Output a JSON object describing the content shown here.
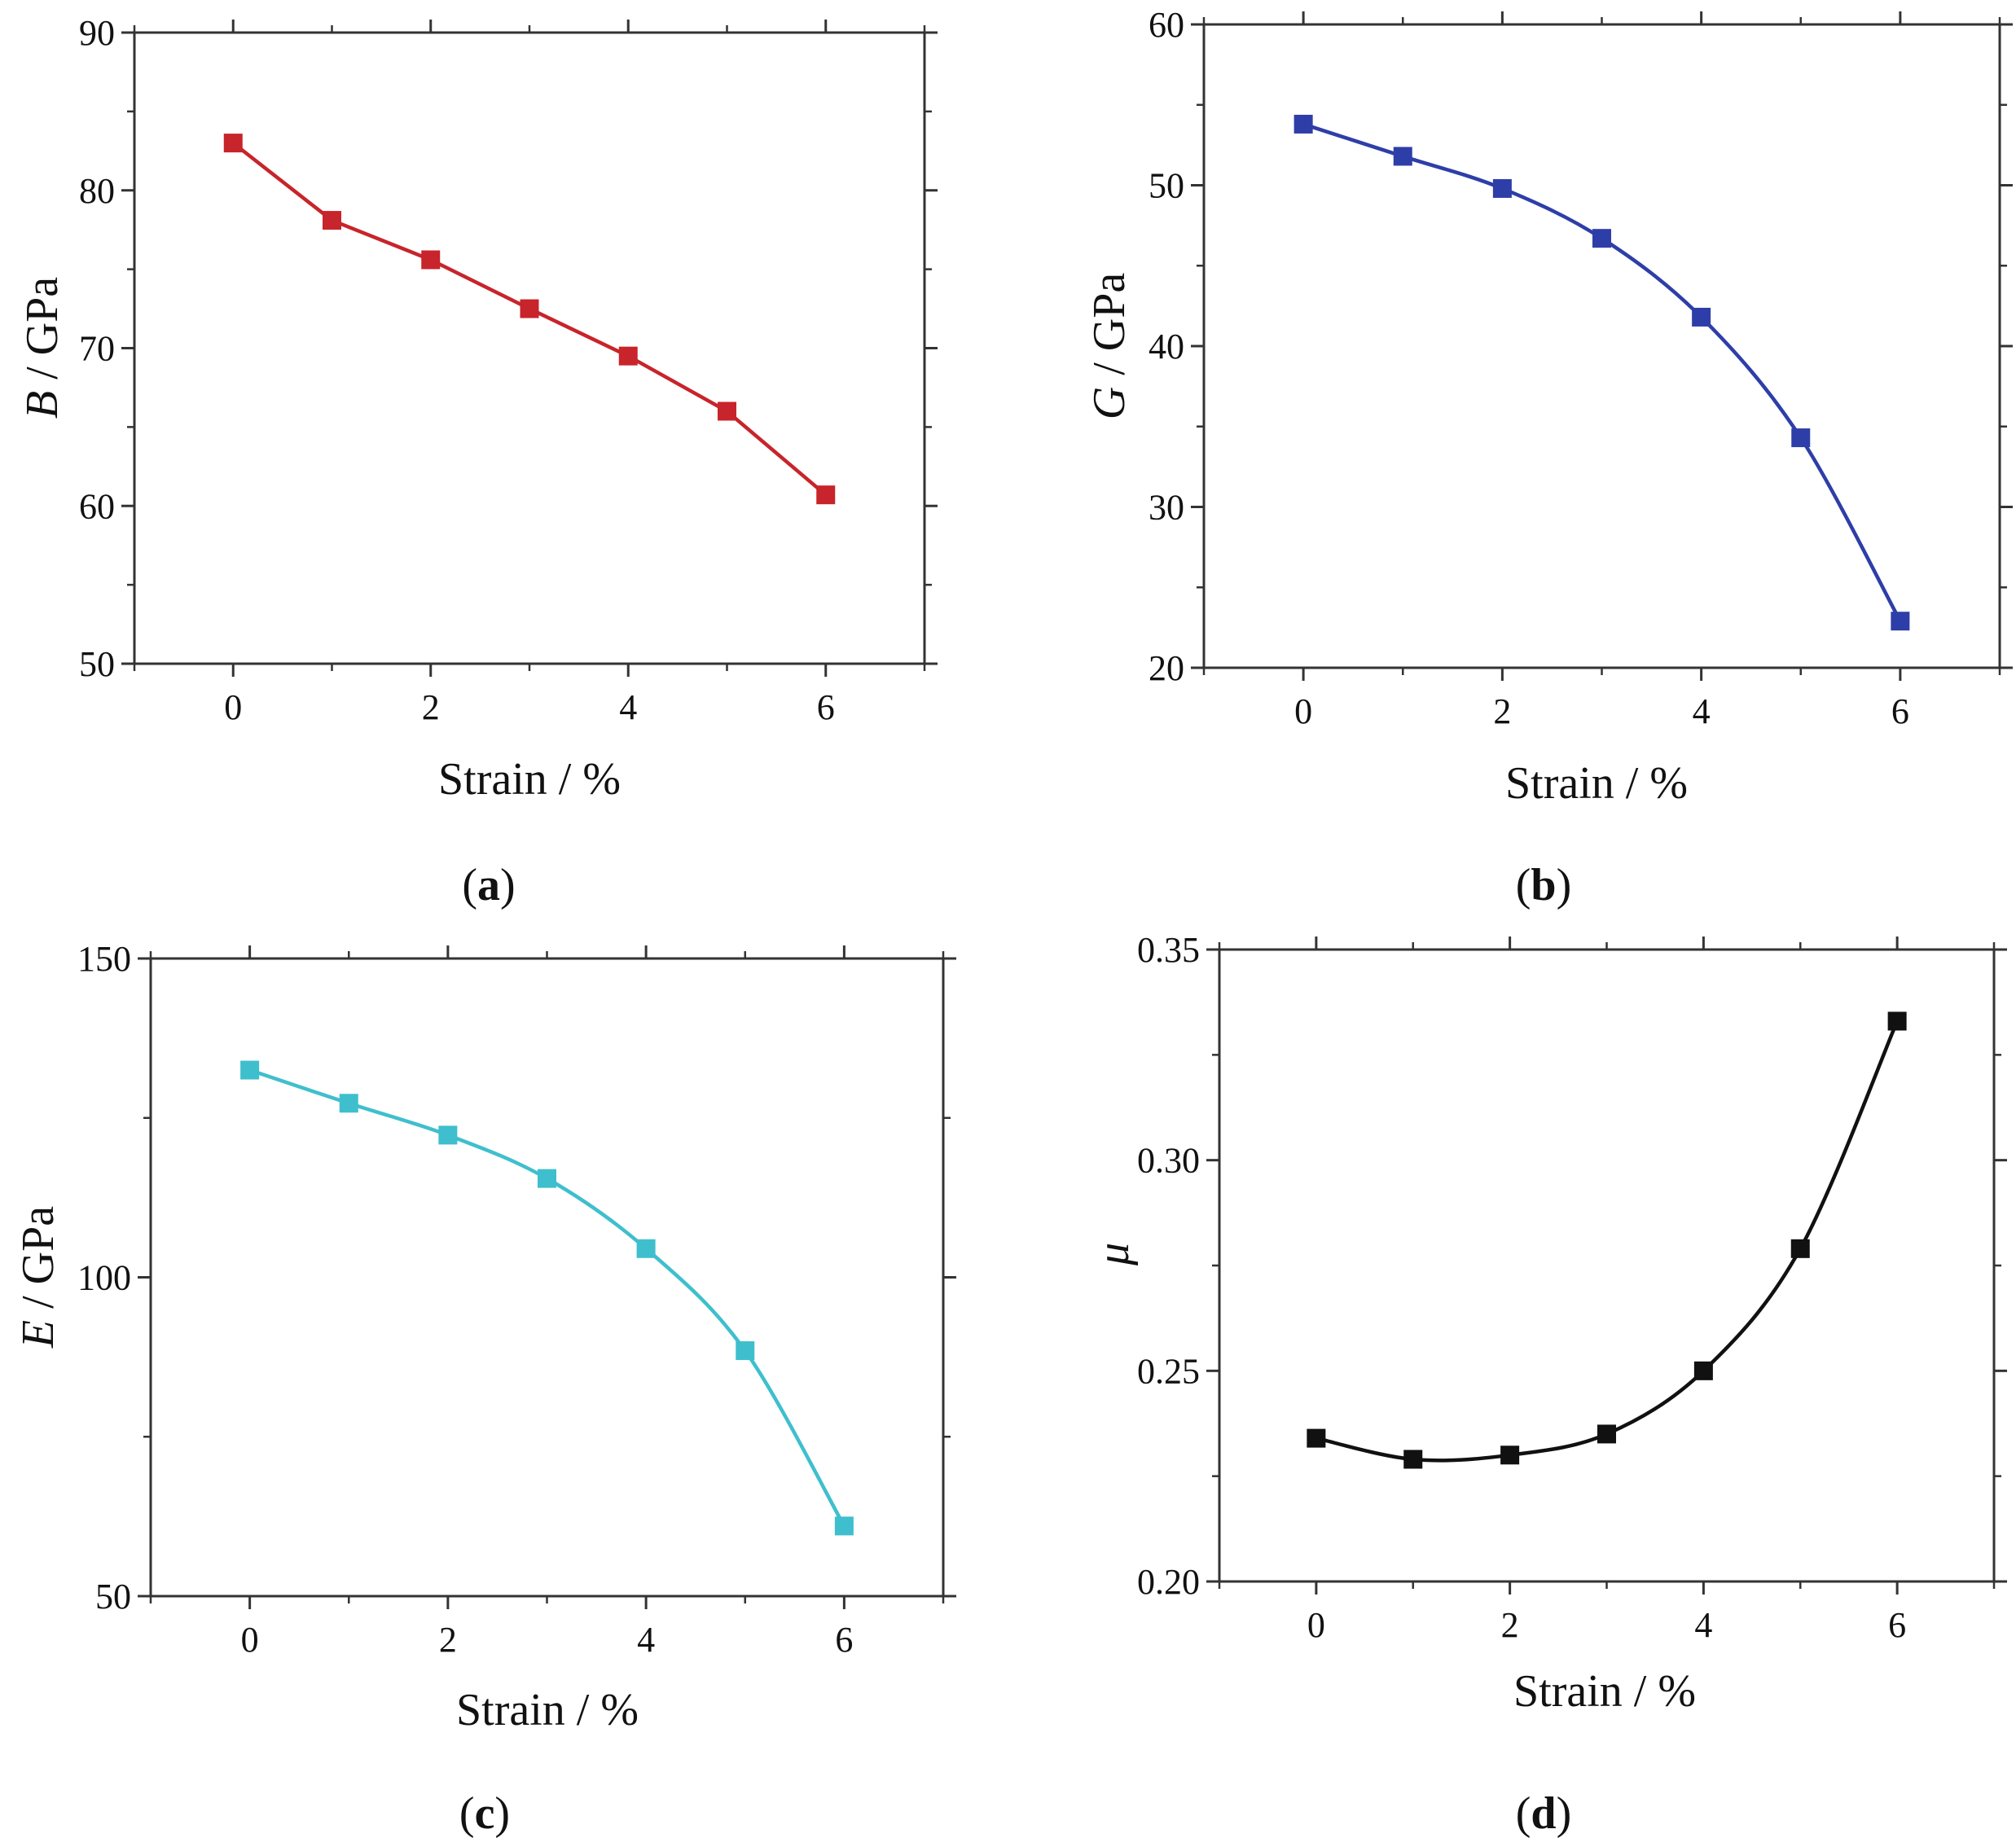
{
  "figure": {
    "background": "#ffffff"
  },
  "chart_data": [
    {
      "id": "a",
      "type": "line",
      "panel_label": "(a)",
      "panel_letter": "a",
      "xlabel": "Strain / %",
      "ylabel_var": "B",
      "ylabel_unit": " / GPa",
      "xlim": [
        -1,
        7
      ],
      "ylim": [
        50,
        90
      ],
      "xticks": [
        0,
        2,
        4,
        6
      ],
      "xtick_labels": [
        "0",
        "2",
        "4",
        "6"
      ],
      "yticks": [
        50,
        60,
        70,
        80,
        90
      ],
      "ytick_labels": [
        "50",
        "60",
        "70",
        "80",
        "90"
      ],
      "x": [
        0,
        1,
        2,
        3,
        4,
        5,
        6
      ],
      "series": [
        {
          "name": "B",
          "values": [
            83.0,
            78.1,
            75.6,
            72.5,
            69.5,
            66.0,
            60.7
          ],
          "color": "#c8242b"
        }
      ],
      "grid": false,
      "smooth": false
    },
    {
      "id": "b",
      "type": "line",
      "panel_label": "(b)",
      "panel_letter": "b",
      "xlabel": "Strain / %",
      "ylabel_var": "G",
      "ylabel_unit": " / GPa",
      "xlim": [
        -1,
        7
      ],
      "ylim": [
        20,
        60
      ],
      "xticks": [
        0,
        2,
        4,
        6
      ],
      "xtick_labels": [
        "0",
        "2",
        "4",
        "6"
      ],
      "yticks": [
        20,
        30,
        40,
        50,
        60
      ],
      "ytick_labels": [
        "20",
        "30",
        "40",
        "50",
        "60"
      ],
      "x": [
        0,
        1,
        2,
        3,
        4,
        5,
        6
      ],
      "series": [
        {
          "name": "G",
          "values": [
            53.8,
            51.8,
            49.8,
            46.7,
            41.8,
            34.3,
            22.9
          ],
          "color": "#2e3ea8"
        }
      ],
      "grid": false,
      "smooth": true
    },
    {
      "id": "c",
      "type": "line",
      "panel_label": "(c)",
      "panel_letter": "c",
      "xlabel": "Strain / %",
      "ylabel_var": "E",
      "ylabel_unit": " / GPa",
      "xlim": [
        -1,
        7
      ],
      "ylim": [
        50,
        150
      ],
      "xticks": [
        0,
        2,
        4,
        6
      ],
      "xtick_labels": [
        "0",
        "2",
        "4",
        "6"
      ],
      "yticks": [
        50,
        100,
        150
      ],
      "ytick_labels": [
        "50",
        "100",
        "150"
      ],
      "x": [
        0,
        1,
        2,
        3,
        4,
        5,
        6
      ],
      "series": [
        {
          "name": "E",
          "values": [
            132.5,
            127.3,
            122.3,
            115.5,
            104.5,
            88.5,
            61.0
          ],
          "color": "#3fbfcd"
        }
      ],
      "grid": false,
      "smooth": true
    },
    {
      "id": "d",
      "type": "line",
      "panel_label": "(d)",
      "panel_letter": "d",
      "xlabel": "Strain / %",
      "ylabel_var": "μ",
      "ylabel_unit": "",
      "xlim": [
        -1,
        7
      ],
      "ylim": [
        0.2,
        0.35
      ],
      "xticks": [
        0,
        2,
        4,
        6
      ],
      "xtick_labels": [
        "0",
        "2",
        "4",
        "6"
      ],
      "yticks": [
        0.2,
        0.25,
        0.3,
        0.35
      ],
      "ytick_labels": [
        "0.20",
        "0.25",
        "0.30",
        "0.35"
      ],
      "x": [
        0,
        1,
        2,
        3,
        4,
        5,
        6
      ],
      "series": [
        {
          "name": "μ",
          "values": [
            0.234,
            0.229,
            0.23,
            0.235,
            0.25,
            0.279,
            0.333
          ],
          "color": "#111111"
        }
      ],
      "grid": false,
      "smooth": true
    }
  ]
}
